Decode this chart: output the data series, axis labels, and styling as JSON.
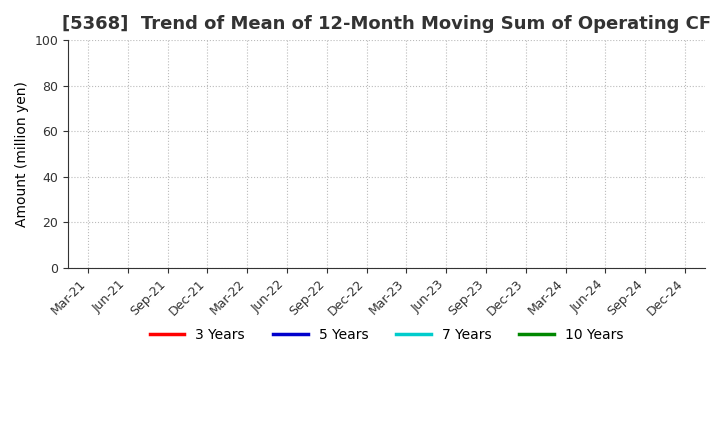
{
  "title": "[5368]  Trend of Mean of 12-Month Moving Sum of Operating CF",
  "ylabel": "Amount (million yen)",
  "ylim": [
    0,
    100
  ],
  "yticks": [
    0,
    20,
    40,
    60,
    80,
    100
  ],
  "x_labels": [
    "Mar-21",
    "Jun-21",
    "Sep-21",
    "Dec-21",
    "Mar-22",
    "Jun-22",
    "Sep-22",
    "Dec-22",
    "Mar-23",
    "Jun-23",
    "Sep-23",
    "Dec-23",
    "Mar-24",
    "Jun-24",
    "Sep-24",
    "Dec-24"
  ],
  "background_color": "#ffffff",
  "plot_bg_color": "#ffffff",
  "grid_color": "#bbbbbb",
  "legend_entries": [
    {
      "label": "3 Years",
      "color": "#ff0000"
    },
    {
      "label": "5 Years",
      "color": "#0000cc"
    },
    {
      "label": "7 Years",
      "color": "#00cccc"
    },
    {
      "label": "10 Years",
      "color": "#008800"
    }
  ],
  "title_fontsize": 13,
  "label_fontsize": 10,
  "tick_fontsize": 9,
  "legend_fontsize": 10
}
